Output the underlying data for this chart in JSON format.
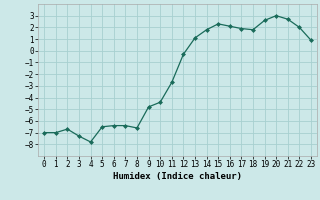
{
  "x": [
    0,
    1,
    2,
    3,
    4,
    5,
    6,
    7,
    8,
    9,
    10,
    11,
    12,
    13,
    14,
    15,
    16,
    17,
    18,
    19,
    20,
    21,
    22,
    23
  ],
  "y": [
    -7.0,
    -7.0,
    -6.7,
    -7.3,
    -7.8,
    -6.5,
    -6.4,
    -6.4,
    -6.6,
    -4.8,
    -4.4,
    -2.7,
    -0.3,
    1.1,
    1.8,
    2.3,
    2.1,
    1.9,
    1.8,
    2.6,
    3.0,
    2.7,
    2.0,
    0.9
  ],
  "line_color": "#1a6b5a",
  "marker": "D",
  "marker_size": 2,
  "bg_color": "#cce8e8",
  "grid_color": "#a8d0d0",
  "xlabel": "Humidex (Indice chaleur)",
  "xlim": [
    -0.5,
    23.5
  ],
  "ylim": [
    -9,
    4
  ],
  "yticks": [
    -8,
    -7,
    -6,
    -5,
    -4,
    -3,
    -2,
    -1,
    0,
    1,
    2,
    3
  ],
  "xticks": [
    0,
    1,
    2,
    3,
    4,
    5,
    6,
    7,
    8,
    9,
    10,
    11,
    12,
    13,
    14,
    15,
    16,
    17,
    18,
    19,
    20,
    21,
    22,
    23
  ],
  "xlabel_fontsize": 6.5,
  "tick_fontsize": 5.5,
  "line_width": 0.9
}
